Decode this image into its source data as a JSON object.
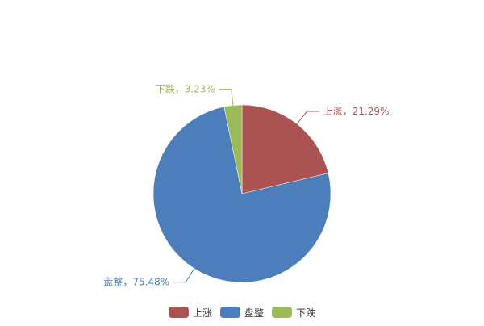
{
  "chart_data": {
    "type": "pie",
    "title": "",
    "slices": [
      {
        "name": "上涨",
        "value": 21.29,
        "label": "上涨，21.29%",
        "color": "#ab5353"
      },
      {
        "name": "盘整",
        "value": 75.48,
        "label": "盘整，75.48%",
        "color": "#4b7ebb"
      },
      {
        "name": "下跌",
        "value": 3.23,
        "label": "下跌，3.23%",
        "color": "#9bbb59"
      }
    ],
    "legend": {
      "position": "bottom",
      "items": [
        "上涨",
        "盘整",
        "下跌"
      ]
    },
    "start_angle": "top",
    "direction": "clockwise"
  }
}
